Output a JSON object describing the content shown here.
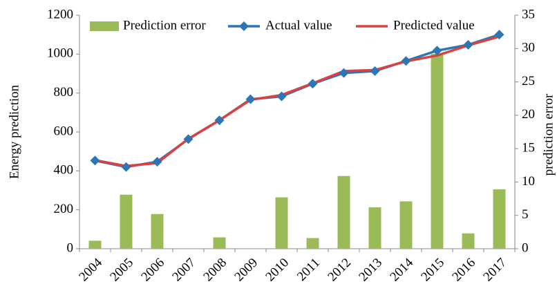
{
  "chart_data": {
    "type": "bar_line",
    "categories": [
      "2004",
      "2005",
      "2006",
      "2007",
      "2008",
      "2009",
      "2010",
      "2011",
      "2012",
      "2013",
      "2014",
      "2015",
      "2016",
      "2017"
    ],
    "series": [
      {
        "name": "Prediction error",
        "type": "bar",
        "axis": "y2",
        "color": "#9bbb59",
        "values": [
          1.2,
          8.1,
          5.2,
          0,
          1.7,
          0,
          7.7,
          1.6,
          10.9,
          6.2,
          7.1,
          29.2,
          2.3,
          8.9
        ]
      },
      {
        "name": "Actual value",
        "type": "line",
        "marker": "diamond",
        "color": "#2e75b6",
        "values": [
          453,
          420,
          447,
          563,
          660,
          768,
          783,
          848,
          903,
          913,
          965,
          1018,
          1048,
          1100
        ]
      },
      {
        "name": "Predicted value",
        "type": "line",
        "color": "#d9423e",
        "values": [
          455,
          425,
          440,
          565,
          660,
          765,
          790,
          850,
          913,
          918,
          963,
          993,
          1045,
          1090
        ]
      }
    ],
    "ylabel": "Energy prediction",
    "y2label": "prediction  error",
    "ylim": [
      0,
      1200
    ],
    "yticks": [
      0,
      200,
      400,
      600,
      800,
      1000,
      1200
    ],
    "y2lim": [
      0,
      35
    ],
    "y2ticks": [
      0,
      5,
      10,
      15,
      20,
      25,
      30,
      35
    ],
    "legend": "top"
  }
}
